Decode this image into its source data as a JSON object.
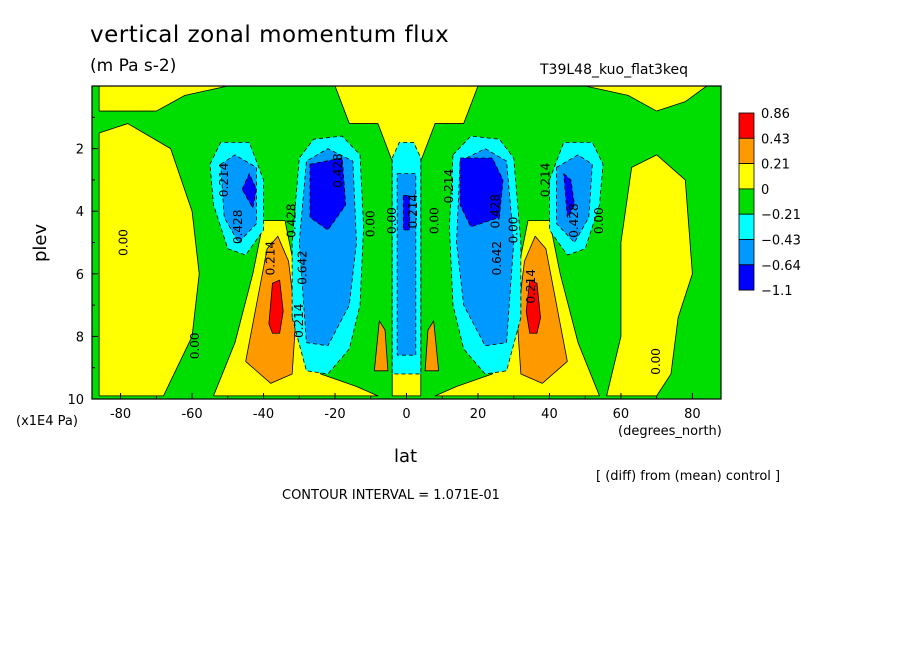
{
  "chart_data": {
    "type": "heatmap",
    "title": "vertical zonal momentum flux",
    "subtitle": "(m Pa s-2)",
    "run_label": "T39L48_kuo_flat3keq",
    "xlabel": "lat",
    "xunit": "(degrees_north)",
    "ylabel": "plev",
    "yunit": "(x1E4 Pa)",
    "footnote": "[ (diff) from (mean) control ]",
    "contour_interval_text": "CONTOUR INTERVAL = 1.071E-01",
    "xlim": [
      -88,
      88
    ],
    "ylim": [
      10,
      0
    ],
    "x_ticks": [
      -80,
      -60,
      -40,
      -20,
      0,
      20,
      40,
      60,
      80
    ],
    "y_ticks": [
      2,
      4,
      6,
      8,
      10
    ],
    "legend_labels": [
      "0.86",
      "0.43",
      "0.21",
      "0",
      "−0.21",
      "−0.43",
      "−0.64",
      "−1.1"
    ],
    "legend_colors": [
      "#ff0000",
      "#ff9900",
      "#ffff00",
      "#00dd00",
      "#00ffff",
      "#0099ff",
      "#0000ff"
    ],
    "background_color": "#00dd00",
    "regions": [
      {
        "level": "pos1",
        "points": [
          [
            -86,
            9.9
          ],
          [
            -86,
            1.5
          ],
          [
            -78,
            1.2
          ],
          [
            -66,
            2
          ],
          [
            -60,
            4
          ],
          [
            -58,
            6
          ],
          [
            -60,
            8
          ],
          [
            -68,
            9.9
          ]
        ]
      },
      {
        "level": "pos1",
        "points": [
          [
            -54,
            9.9
          ],
          [
            -48,
            8.2
          ],
          [
            -43,
            6
          ],
          [
            -40,
            4.3
          ],
          [
            -34,
            4.3
          ],
          [
            -31,
            6
          ],
          [
            -28,
            8.5
          ],
          [
            -24,
            9.2
          ],
          [
            -14,
            9.6
          ],
          [
            -8,
            9.9
          ]
        ]
      },
      {
        "level": "pos1",
        "points": [
          [
            8,
            9.9
          ],
          [
            14,
            9.6
          ],
          [
            24,
            9.2
          ],
          [
            28,
            8.5
          ],
          [
            31,
            6
          ],
          [
            34,
            4.3
          ],
          [
            40,
            4.3
          ],
          [
            43,
            6
          ],
          [
            48,
            8.2
          ],
          [
            54,
            9.9
          ]
        ]
      },
      {
        "level": "pos1",
        "points": [
          [
            56,
            9.9
          ],
          [
            60,
            8
          ],
          [
            60,
            5
          ],
          [
            63,
            2.6
          ],
          [
            70,
            2.2
          ],
          [
            78,
            3
          ],
          [
            80,
            6
          ],
          [
            76,
            7.4
          ],
          [
            74,
            9.2
          ],
          [
            70,
            9.9
          ]
        ]
      },
      {
        "level": "pos1",
        "points": [
          [
            -20,
            0
          ],
          [
            -16,
            1.2
          ],
          [
            -8,
            1.2
          ],
          [
            -4,
            2.4
          ],
          [
            -4,
            9.9
          ],
          [
            4,
            9.9
          ],
          [
            4,
            2.4
          ],
          [
            8,
            1.2
          ],
          [
            16,
            1.2
          ],
          [
            20,
            0
          ]
        ]
      },
      {
        "level": "pos1",
        "points": [
          [
            -86,
            0
          ],
          [
            -86,
            0.8
          ],
          [
            -70,
            0.8
          ],
          [
            -62,
            0.3
          ],
          [
            -50,
            0
          ]
        ]
      },
      {
        "level": "pos1",
        "points": [
          [
            50,
            0
          ],
          [
            62,
            0.3
          ],
          [
            70,
            0.8
          ],
          [
            78,
            0.5
          ],
          [
            84,
            0
          ]
        ]
      },
      {
        "level": "pos2",
        "points": [
          [
            -45,
            8.8
          ],
          [
            -42,
            7
          ],
          [
            -39,
            5.2
          ],
          [
            -36,
            4.8
          ],
          [
            -33,
            5.6
          ],
          [
            -31,
            7.5
          ],
          [
            -32,
            9.2
          ],
          [
            -38,
            9.5
          ]
        ]
      },
      {
        "level": "pos2",
        "points": [
          [
            32,
            9.2
          ],
          [
            31,
            7.5
          ],
          [
            33,
            5.6
          ],
          [
            36,
            4.8
          ],
          [
            39,
            5.2
          ],
          [
            42,
            7
          ],
          [
            45,
            8.8
          ],
          [
            38,
            9.5
          ]
        ]
      },
      {
        "level": "pos2",
        "points": [
          [
            -9,
            9.1
          ],
          [
            -7.6,
            7.5
          ],
          [
            -6,
            7.8
          ],
          [
            -5.2,
            9.1
          ]
        ]
      },
      {
        "level": "pos2",
        "points": [
          [
            5.2,
            9.1
          ],
          [
            6,
            7.8
          ],
          [
            7.6,
            7.5
          ],
          [
            9,
            9.1
          ]
        ]
      },
      {
        "level": "pos3",
        "points": [
          [
            -38.5,
            7.6
          ],
          [
            -37.5,
            6.3
          ],
          [
            -35.5,
            6.2
          ],
          [
            -34.5,
            7.2
          ],
          [
            -35.5,
            7.9
          ],
          [
            -37.5,
            7.9
          ]
        ]
      },
      {
        "level": "pos3",
        "points": [
          [
            33.5,
            7.2
          ],
          [
            34.5,
            6.2
          ],
          [
            36.5,
            6.3
          ],
          [
            37.5,
            7.4
          ],
          [
            36.5,
            7.9
          ],
          [
            34.5,
            7.9
          ]
        ]
      },
      {
        "level": "neg1",
        "points": [
          [
            -55,
            2.5
          ],
          [
            -52,
            1.8
          ],
          [
            -44,
            1.8
          ],
          [
            -40,
            3
          ],
          [
            -40,
            4.6
          ],
          [
            -45,
            5.4
          ],
          [
            -50,
            5.2
          ],
          [
            -54,
            3.8
          ]
        ]
      },
      {
        "level": "neg1",
        "points": [
          [
            -32,
            7.4
          ],
          [
            -32,
            5
          ],
          [
            -30,
            2.3
          ],
          [
            -26,
            1.7
          ],
          [
            -18,
            1.6
          ],
          [
            -13,
            2.2
          ],
          [
            -12,
            4.5
          ],
          [
            -13,
            7
          ],
          [
            -16,
            8.4
          ],
          [
            -22,
            9.2
          ],
          [
            -28,
            9.1
          ]
        ]
      },
      {
        "level": "neg1",
        "points": [
          [
            -4,
            2.3
          ],
          [
            -2,
            1.8
          ],
          [
            2,
            1.8
          ],
          [
            4,
            2.3
          ],
          [
            4,
            9.2
          ],
          [
            -4,
            9.2
          ]
        ]
      },
      {
        "level": "neg1",
        "points": [
          [
            13,
            2.2
          ],
          [
            18,
            1.6
          ],
          [
            26,
            1.7
          ],
          [
            30,
            2.3
          ],
          [
            32,
            5
          ],
          [
            32,
            7.4
          ],
          [
            28,
            9.1
          ],
          [
            22,
            9.2
          ],
          [
            16,
            8.4
          ],
          [
            13,
            7
          ],
          [
            12,
            4.5
          ]
        ]
      },
      {
        "level": "neg1",
        "points": [
          [
            40,
            3
          ],
          [
            44,
            1.8
          ],
          [
            52,
            1.8
          ],
          [
            55,
            2.5
          ],
          [
            54,
            3.8
          ],
          [
            50,
            5.2
          ],
          [
            45,
            5.4
          ],
          [
            40,
            4.6
          ]
        ]
      },
      {
        "level": "neg2",
        "points": [
          [
            -52,
            2.5
          ],
          [
            -48,
            2.2
          ],
          [
            -42,
            2.6
          ],
          [
            -42,
            4.4
          ],
          [
            -47,
            5
          ],
          [
            -51,
            4.2
          ]
        ]
      },
      {
        "level": "neg2",
        "points": [
          [
            -30,
            5
          ],
          [
            -28,
            2.4
          ],
          [
            -22,
            2
          ],
          [
            -15,
            2.4
          ],
          [
            -14,
            5
          ],
          [
            -16,
            7
          ],
          [
            -22,
            8.3
          ],
          [
            -28,
            8.2
          ]
        ]
      },
      {
        "level": "neg2",
        "points": [
          [
            -2.6,
            2.8
          ],
          [
            2.6,
            2.8
          ],
          [
            2.6,
            8.6
          ],
          [
            -2.6,
            8.6
          ]
        ]
      },
      {
        "level": "neg2",
        "points": [
          [
            15,
            2.4
          ],
          [
            22,
            2
          ],
          [
            28,
            2.4
          ],
          [
            30,
            5
          ],
          [
            28,
            8.2
          ],
          [
            22,
            8.3
          ],
          [
            16,
            7
          ],
          [
            14,
            5
          ]
        ]
      },
      {
        "level": "neg2",
        "points": [
          [
            42,
            2.6
          ],
          [
            48,
            2.2
          ],
          [
            52,
            2.5
          ],
          [
            51,
            4.2
          ],
          [
            47,
            5
          ],
          [
            42,
            4.4
          ]
        ]
      },
      {
        "level": "neg3",
        "points": [
          [
            -46,
            3.3
          ],
          [
            -44,
            2.8
          ],
          [
            -42,
            3.3
          ],
          [
            -43,
            3.9
          ]
        ]
      },
      {
        "level": "neg3",
        "points": [
          [
            -27,
            2.5
          ],
          [
            -18,
            2.3
          ],
          [
            -17,
            3.8
          ],
          [
            -22,
            4.6
          ],
          [
            -27,
            4.2
          ]
        ]
      },
      {
        "level": "neg3",
        "points": [
          [
            -0.9,
            3.5
          ],
          [
            0.9,
            3.5
          ],
          [
            0.9,
            4.6
          ],
          [
            -0.9,
            4.6
          ]
        ]
      },
      {
        "level": "neg3",
        "points": [
          [
            15,
            2.3
          ],
          [
            24,
            2.3
          ],
          [
            27,
            3
          ],
          [
            26,
            4.2
          ],
          [
            18,
            4.5
          ],
          [
            15,
            3.8
          ]
        ]
      },
      {
        "level": "neg3",
        "points": [
          [
            44,
            2.8
          ],
          [
            46,
            3
          ],
          [
            47,
            3.8
          ],
          [
            45,
            4.2
          ]
        ]
      }
    ],
    "contour_labels": [
      {
        "text": "0.00",
        "x": -78,
        "y": 5.0
      },
      {
        "text": "0.00",
        "x": -58,
        "y": 8.3
      },
      {
        "text": "0.214",
        "x": -50,
        "y": 3.0
      },
      {
        "text": "0.428",
        "x": -46,
        "y": 4.5
      },
      {
        "text": "0.214",
        "x": -37,
        "y": 5.5
      },
      {
        "text": "0.428",
        "x": -31,
        "y": 4.3
      },
      {
        "text": "0.642",
        "x": -28,
        "y": 5.8
      },
      {
        "text": "0.214",
        "x": -29,
        "y": 7.5
      },
      {
        "text": "0.428",
        "x": -18,
        "y": 2.7
      },
      {
        "text": "0.00",
        "x": -9,
        "y": 4.4
      },
      {
        "text": "0.00",
        "x": -3,
        "y": 4.3
      },
      {
        "text": "0.214",
        "x": 3,
        "y": 4.0
      },
      {
        "text": "0.00",
        "x": 9,
        "y": 4.3
      },
      {
        "text": "0.214",
        "x": 13,
        "y": 3.2
      },
      {
        "text": "0.428",
        "x": 26,
        "y": 4.0
      },
      {
        "text": "0.642",
        "x": 26.5,
        "y": 5.5
      },
      {
        "text": "0.00",
        "x": 31,
        "y": 4.6
      },
      {
        "text": "0.214",
        "x": 36,
        "y": 6.4
      },
      {
        "text": "0.214",
        "x": 40,
        "y": 3.0
      },
      {
        "text": "0.428",
        "x": 48,
        "y": 4.3
      },
      {
        "text": "0.00",
        "x": 55,
        "y": 4.3
      },
      {
        "text": "0.00",
        "x": 71,
        "y": 8.8
      }
    ]
  }
}
